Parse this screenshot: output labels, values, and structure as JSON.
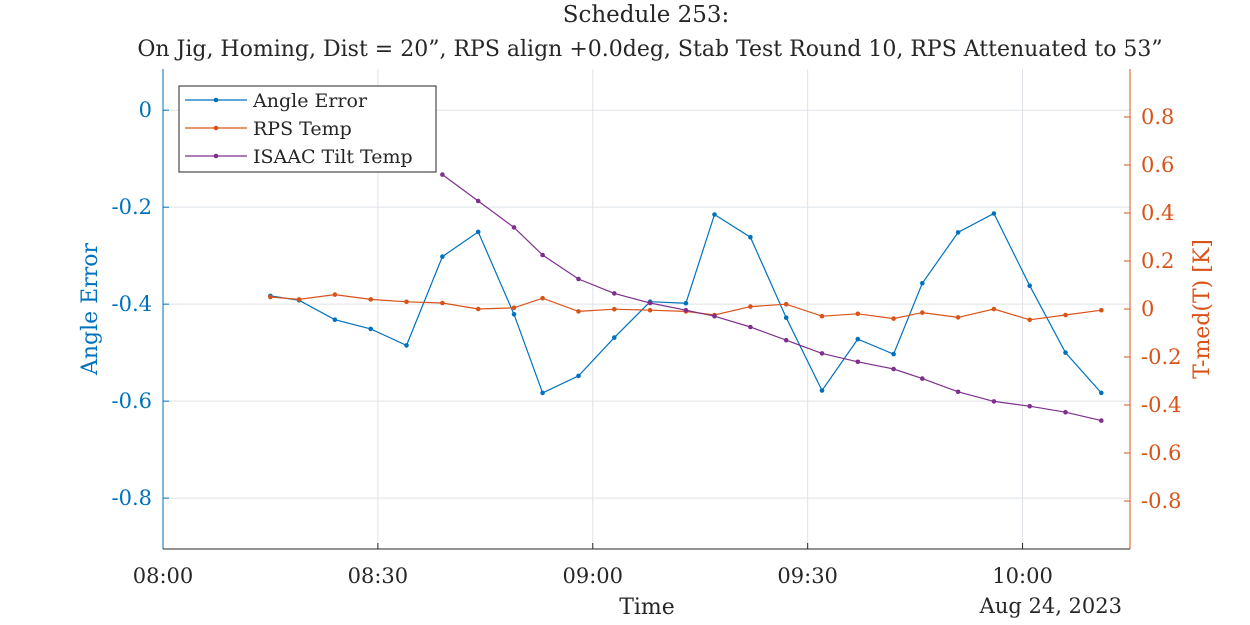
{
  "chart_data": {
    "type": "line",
    "title": "Schedule 253:",
    "subtitle": "On Jig, Homing, Dist = 20”, RPS align +0.0deg, Stab Test Round 10, RPS Attenuated to 53”",
    "xlabel": "Time",
    "x_date_label": "Aug 24, 2023",
    "ylabel_left": "Angle Error",
    "ylabel_right": "T-med(T) [K]",
    "x_ticks": [
      "08:00",
      "08:30",
      "09:00",
      "09:30",
      "10:00"
    ],
    "x_range": [
      "08:00",
      "10:15"
    ],
    "ylim_left": [
      -0.905,
      0.085
    ],
    "ylim_right": [
      -1.0,
      1.0
    ],
    "y_ticks_left": [
      "0",
      "-0.2",
      "-0.4",
      "-0.6",
      "-0.8"
    ],
    "y_ticks_right": [
      "0.8",
      "0.6",
      "0.4",
      "0.2",
      "0",
      "-0.2",
      "-0.4",
      "-0.6",
      "-0.8"
    ],
    "grid": true,
    "legend_position": "top-left",
    "x": [
      "08:15",
      "08:19",
      "08:24",
      "08:29",
      "08:34",
      "08:39",
      "08:44",
      "08:49",
      "08:53",
      "08:58",
      "09:03",
      "09:08",
      "09:13",
      "09:17",
      "09:22",
      "09:27",
      "09:32",
      "09:37",
      "09:42",
      "09:46",
      "09:51",
      "09:56",
      "10:01",
      "10:06",
      "10:11"
    ],
    "series": [
      {
        "name": "Angle Error",
        "axis": "left",
        "color": "#0072BD",
        "values": [
          -0.383,
          -0.392,
          -0.432,
          -0.451,
          -0.485,
          -0.302,
          -0.251,
          -0.421,
          -0.583,
          -0.548,
          -0.469,
          -0.395,
          -0.398,
          -0.215,
          -0.262,
          -0.428,
          -0.578,
          -0.472,
          -0.503,
          -0.357,
          -0.252,
          -0.213,
          -0.362,
          -0.5,
          -0.583
        ]
      },
      {
        "name": "RPS Temp",
        "axis": "right",
        "color": "#D95319",
        "values": [
          0.05,
          0.04,
          0.06,
          0.04,
          0.03,
          0.025,
          0.0,
          0.005,
          0.045,
          -0.01,
          -0.001,
          -0.005,
          -0.01,
          -0.025,
          0.01,
          0.02,
          -0.03,
          -0.02,
          -0.04,
          -0.015,
          -0.035,
          0.0,
          -0.045,
          -0.025,
          -0.005
        ]
      },
      {
        "name": "ISAAC Tilt Temp",
        "axis": "right",
        "color": "#7E2F8E",
        "values": [
          null,
          null,
          null,
          null,
          null,
          0.56,
          0.45,
          0.34,
          0.225,
          0.125,
          0.065,
          0.025,
          -0.005,
          -0.03,
          -0.075,
          -0.13,
          -0.185,
          -0.22,
          -0.25,
          -0.29,
          -0.345,
          -0.385,
          -0.405,
          -0.43,
          -0.465
        ]
      }
    ]
  }
}
